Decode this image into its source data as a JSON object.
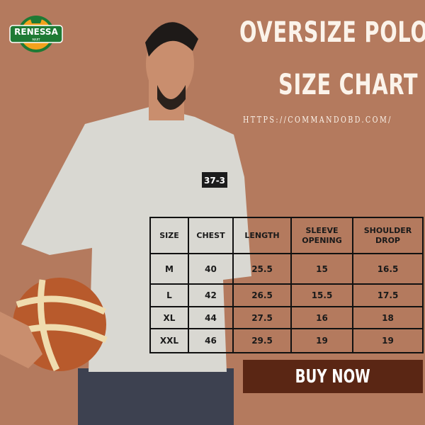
{
  "logo": {
    "text": "RENESSA",
    "sub": "MART"
  },
  "title_line1": "OVERSIZE  POLO",
  "title_line2": "SIZE CHART",
  "url": "HTTPS://COMMANDOBD.COM/",
  "shirt_print": "37-3",
  "size_table": {
    "headers": [
      "SIZE",
      "CHEST",
      "LENGTH",
      "SLEEVE OPENING",
      "SHOULDER DROP"
    ],
    "rows": [
      [
        "M",
        "40",
        "25.5",
        "15",
        "16.5"
      ],
      [
        "L",
        "42",
        "26.5",
        "15.5",
        "17.5"
      ],
      [
        "XL",
        "44",
        "27.5",
        "16",
        "18"
      ],
      [
        "XXL",
        "46",
        "29.5",
        "19",
        "19"
      ]
    ]
  },
  "buy_button": "BUY NOW",
  "colors": {
    "background": "#b47a5e",
    "button": "#5a2614",
    "logo_green": "#1e7a34",
    "logo_orange": "#f3a21d"
  }
}
